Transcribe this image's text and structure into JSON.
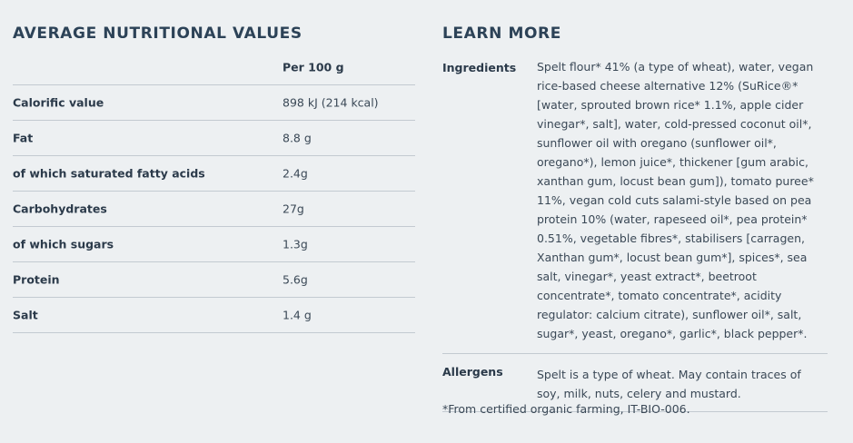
{
  "nutrition": {
    "heading": "AVERAGE NUTRITIONAL VALUES",
    "column_header": "Per 100 g",
    "rows": [
      {
        "label": "Calorific value",
        "value": "898 kJ (214 kcal)"
      },
      {
        "label": "Fat",
        "value": "8.8 g"
      },
      {
        "label": "of which saturated fatty acids",
        "value": "2.4g"
      },
      {
        "label": "Carbohydrates",
        "value": "27g"
      },
      {
        "label": "of which sugars",
        "value": "1.3g"
      },
      {
        "label": "Protein",
        "value": "5.6g"
      },
      {
        "label": "Salt",
        "value": "1.4 g"
      }
    ]
  },
  "learn_more": {
    "heading": "LEARN MORE",
    "ingredients_label": "Ingredients",
    "ingredients_text": "Spelt flour* 41% (a type of wheat), water, vegan rice-based cheese alternative 12% (SuRice®* [water, sprouted brown rice* 1.1%, apple cider vinegar*, salt], water, cold-pressed coconut oil*, sunflower oil with oregano (sunflower oil*, oregano*), lemon juice*, thickener [gum arabic, xanthan gum, locust bean gum]), tomato puree* 11%, vegan cold cuts salami-style based on pea protein 10% (water, rapeseed oil*, pea protein* 0.51%, vegetable fibres*, stabilisers [carragen, Xanthan gum*, locust bean gum*], spices*, sea salt, vinegar*, yeast extract*, beetroot concentrate*, tomato concentrate*, acidity regulator: calcium citrate), sunflower oil*, salt, sugar*, yeast, oregano*, garlic*, black pepper*.",
    "allergens_label": "Allergens",
    "allergens_text": "Spelt is a type of wheat. May contain traces of soy, milk, nuts, celery and mustard.",
    "footnote": "*From certified organic farming, IT-BIO-006."
  }
}
